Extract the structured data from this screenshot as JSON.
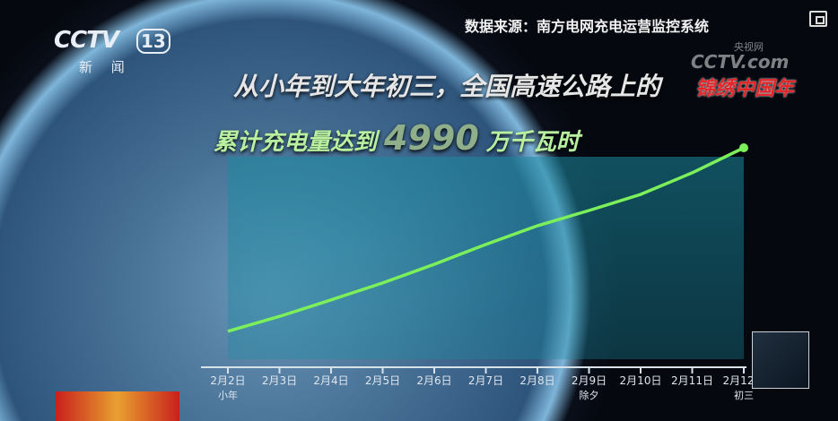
{
  "header": {
    "channel_logo": "CCTV",
    "channel_number": "13",
    "channel_name": "新 闻",
    "source": "数据来源：南方电网充电运营监控系统",
    "watermark_small": "央视网",
    "watermark_big": "CCTV.com",
    "festival_logo": "锦绣中国年"
  },
  "headline": {
    "line1": "从小年到大年初三，全国高速公路上的",
    "line2_prefix": "累计充电量达到",
    "line2_number": "4990",
    "line2_unit": "万千瓦时"
  },
  "chart_data": {
    "type": "area",
    "categories": [
      "2月2日",
      "2月3日",
      "2月4日",
      "2月5日",
      "2月6日",
      "2月7日",
      "2月8日",
      "2月9日",
      "2月10日",
      "2月11日",
      "2月12日"
    ],
    "sublabels": [
      "小年",
      "",
      "",
      "",
      "",
      "",
      "",
      "除夕",
      "",
      "",
      "初三"
    ],
    "values": [
      660,
      1010,
      1400,
      1800,
      2240,
      2710,
      3150,
      3510,
      3890,
      4400,
      4990
    ],
    "line_color": "#7cf05a",
    "fill_color": "#1a8aa0",
    "y_axis_shown": false,
    "grid": false
  }
}
